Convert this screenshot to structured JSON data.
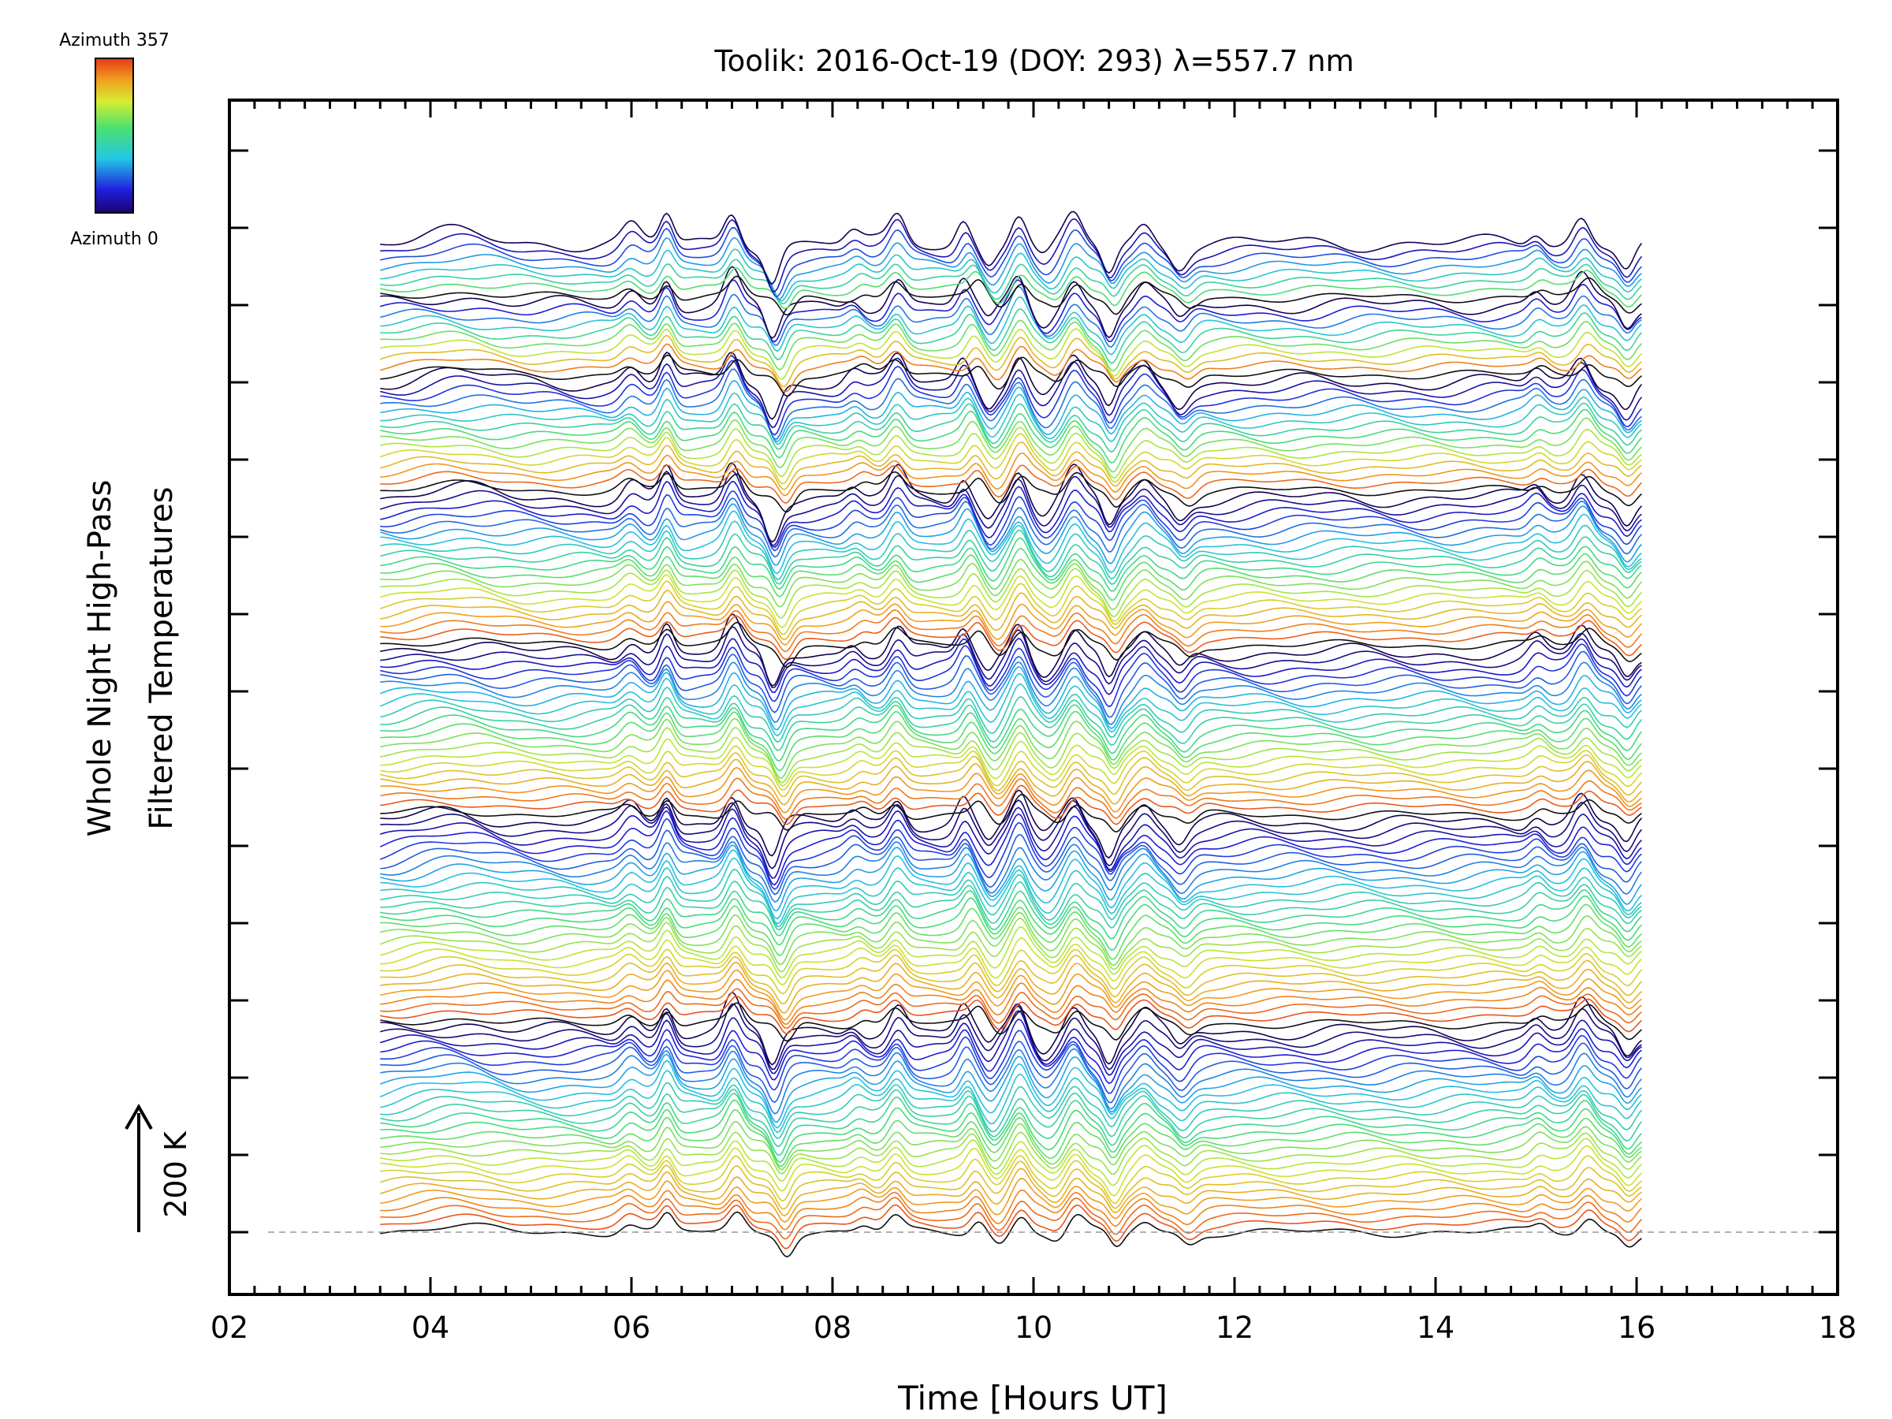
{
  "chart_data": {
    "type": "line",
    "title": "Toolik: 2016-Oct-19 (DOY: 293) λ=557.7 nm",
    "xlabel": "Time [Hours UT]",
    "ylabel_line1": "Whole Night High-Pass",
    "ylabel_line2": "Filtered Temperatures",
    "xlim": [
      2,
      18
    ],
    "x_ticks": [
      "02",
      "04",
      "06",
      "08",
      "10",
      "12",
      "14",
      "16",
      "18"
    ],
    "x_tick_values": [
      2,
      4,
      6,
      8,
      10,
      12,
      14,
      16,
      18
    ],
    "data_time_range": [
      3.5,
      16.05
    ],
    "scale_bar_label": "200 K",
    "scale_bar_value_K": 200,
    "colorbar": {
      "top_label": "Azimuth 357",
      "bottom_label": "Azimuth 0",
      "azimuth_range": [
        0,
        357
      ]
    },
    "stacked_profile_groups": 7,
    "traces_per_group": [
      27,
      27,
      22,
      20,
      15,
      10,
      8
    ],
    "disturbance_events": [
      {
        "time": 6.0,
        "amplitude": 1.0
      },
      {
        "time": 6.35,
        "amplitude": 1.8
      },
      {
        "time": 7.0,
        "amplitude": 2.0
      },
      {
        "time": 7.4,
        "amplitude": -2.2
      },
      {
        "time": 8.2,
        "amplitude": 0.7
      },
      {
        "time": 8.65,
        "amplitude": 1.6
      },
      {
        "time": 9.3,
        "amplitude": 1.5
      },
      {
        "time": 9.55,
        "amplitude": -1.2
      },
      {
        "time": 9.85,
        "amplitude": 1.9
      },
      {
        "time": 10.1,
        "amplitude": -1.0
      },
      {
        "time": 10.4,
        "amplitude": 1.6
      },
      {
        "time": 10.75,
        "amplitude": -1.8
      },
      {
        "time": 11.1,
        "amplitude": 1.2
      },
      {
        "time": 11.45,
        "amplitude": -1.2
      },
      {
        "time": 15.0,
        "amplitude": 0.8
      },
      {
        "time": 15.45,
        "amplitude": 1.7
      },
      {
        "time": 15.9,
        "amplitude": -1.4
      }
    ]
  }
}
